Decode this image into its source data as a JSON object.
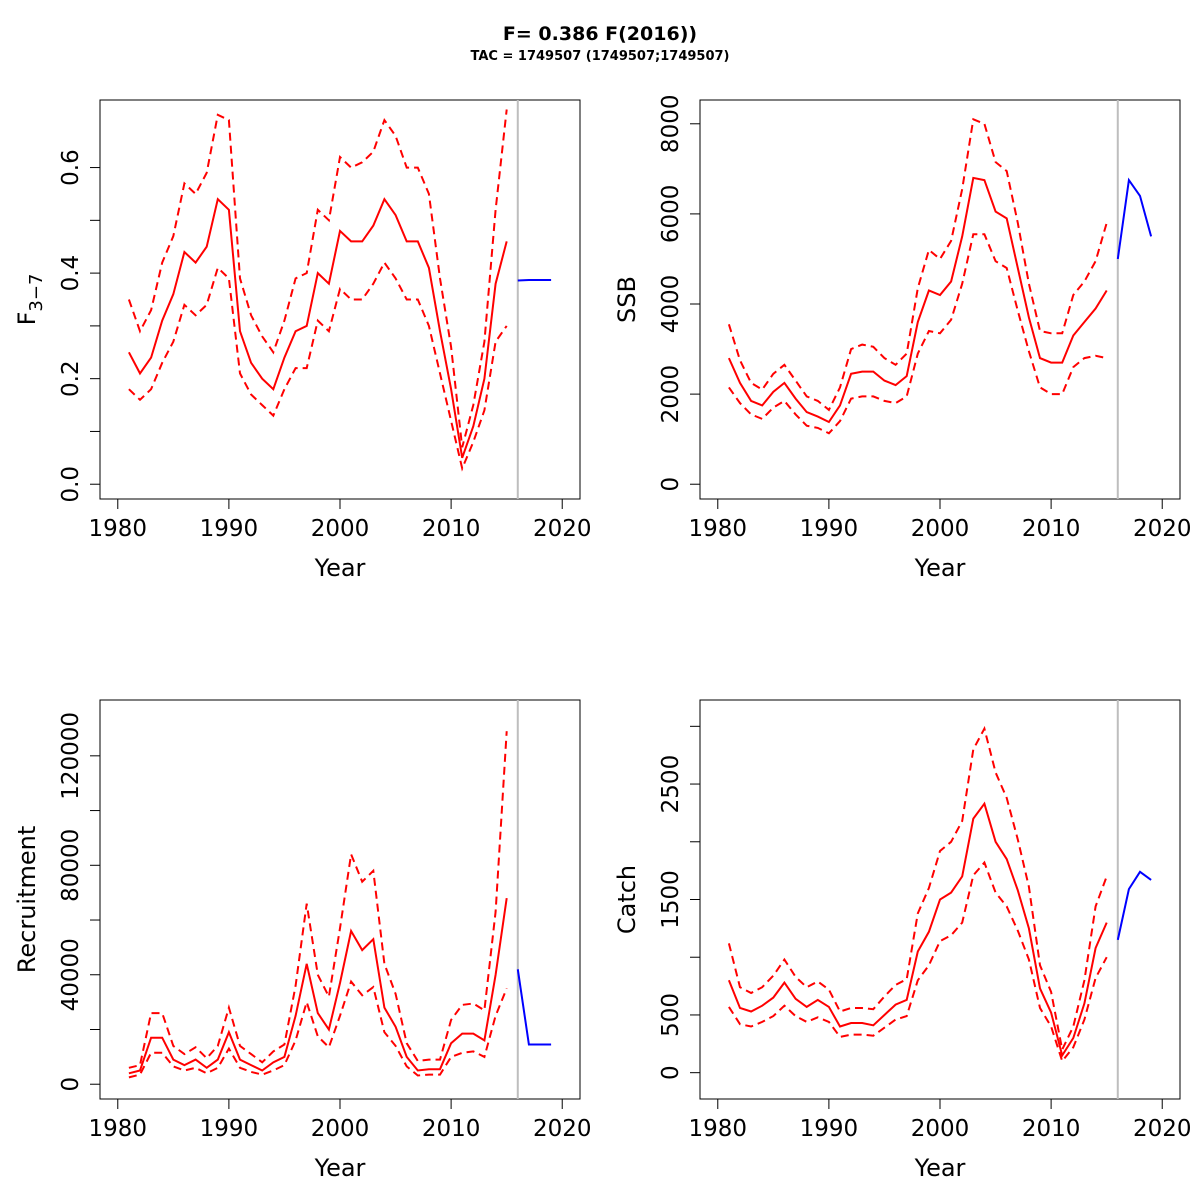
{
  "title": "F= 0.386 F(2016))",
  "subtitle": "TAC = 1749507 (1749507;1749507)",
  "colors": {
    "estimate": "#ff0000",
    "projection": "#0000ff",
    "divider": "#bebebe"
  },
  "chart_data": [
    {
      "type": "line",
      "xlabel": "Year",
      "ylabel_main": "F",
      "ylabel_sub": "3−7",
      "xlim": [
        1980,
        2020
      ],
      "ylim": [
        0,
        0.7
      ],
      "xticks": [
        1980,
        1990,
        2000,
        2010,
        2020
      ],
      "yticks": [
        0.0,
        0.2,
        0.4,
        0.6
      ],
      "ytick_labels": [
        "0.0",
        "0.2",
        "0.4",
        "0.6"
      ],
      "yminor": [
        0.1,
        0.3,
        0.5
      ],
      "divider_x": 2016,
      "years": [
        1981,
        1982,
        1983,
        1984,
        1985,
        1986,
        1987,
        1988,
        1989,
        1990,
        1991,
        1992,
        1993,
        1994,
        1995,
        1996,
        1997,
        1998,
        1999,
        2000,
        2001,
        2002,
        2003,
        2004,
        2005,
        2006,
        2007,
        2008,
        2009,
        2010,
        2011,
        2012,
        2013,
        2014,
        2015
      ],
      "estimate": [
        0.25,
        0.21,
        0.24,
        0.31,
        0.36,
        0.44,
        0.42,
        0.45,
        0.54,
        0.52,
        0.29,
        0.23,
        0.2,
        0.18,
        0.24,
        0.29,
        0.3,
        0.4,
        0.38,
        0.48,
        0.46,
        0.46,
        0.49,
        0.54,
        0.51,
        0.46,
        0.46,
        0.41,
        0.29,
        0.18,
        0.05,
        0.11,
        0.2,
        0.38,
        0.46
      ],
      "upper": [
        0.35,
        0.29,
        0.33,
        0.42,
        0.47,
        0.57,
        0.55,
        0.59,
        0.7,
        0.69,
        0.39,
        0.32,
        0.28,
        0.25,
        0.31,
        0.39,
        0.4,
        0.52,
        0.5,
        0.62,
        0.6,
        0.61,
        0.63,
        0.69,
        0.66,
        0.6,
        0.6,
        0.55,
        0.39,
        0.26,
        0.07,
        0.15,
        0.27,
        0.52,
        0.71
      ],
      "lower": [
        0.18,
        0.16,
        0.18,
        0.23,
        0.27,
        0.34,
        0.32,
        0.34,
        0.41,
        0.39,
        0.21,
        0.17,
        0.15,
        0.13,
        0.18,
        0.22,
        0.22,
        0.31,
        0.29,
        0.37,
        0.35,
        0.35,
        0.38,
        0.42,
        0.39,
        0.35,
        0.35,
        0.3,
        0.21,
        0.12,
        0.03,
        0.08,
        0.14,
        0.27,
        0.3
      ],
      "proj_years": [
        2016,
        2017,
        2018,
        2019
      ],
      "projection": [
        0.386,
        0.387,
        0.387,
        0.387
      ]
    },
    {
      "type": "line",
      "xlabel": "Year",
      "ylabel_main": "SSB",
      "ylabel_sub": "",
      "xlim": [
        1980,
        2020
      ],
      "ylim": [
        0,
        8200
      ],
      "xticks": [
        1980,
        1990,
        2000,
        2010,
        2020
      ],
      "yticks": [
        0,
        2000,
        4000,
        6000,
        8000
      ],
      "ytick_labels": [
        "0",
        "2000",
        "4000",
        "6000",
        "8000"
      ],
      "yminor": [],
      "divider_x": 2016,
      "years": [
        1981,
        1982,
        1983,
        1984,
        1985,
        1986,
        1987,
        1988,
        1989,
        1990,
        1991,
        1992,
        1993,
        1994,
        1995,
        1996,
        1997,
        1998,
        1999,
        2000,
        2001,
        2002,
        2003,
        2004,
        2005,
        2006,
        2007,
        2008,
        2009,
        2010,
        2011,
        2012,
        2013,
        2014,
        2015
      ],
      "estimate": [
        2800,
        2250,
        1850,
        1750,
        2050,
        2250,
        1900,
        1600,
        1500,
        1380,
        1750,
        2450,
        2500,
        2500,
        2300,
        2200,
        2400,
        3600,
        4300,
        4200,
        4500,
        5500,
        6800,
        6750,
        6050,
        5900,
        4800,
        3700,
        2800,
        2700,
        2700,
        3300,
        3600,
        3900,
        4300
      ],
      "upper": [
        3550,
        2750,
        2250,
        2100,
        2450,
        2650,
        2300,
        1950,
        1850,
        1650,
        2150,
        3000,
        3100,
        3050,
        2800,
        2650,
        2900,
        4350,
        5200,
        5000,
        5400,
        6550,
        8100,
        8000,
        7150,
        6950,
        5800,
        4450,
        3400,
        3350,
        3350,
        4200,
        4500,
        4950,
        5800
      ],
      "lower": [
        2150,
        1800,
        1550,
        1450,
        1700,
        1850,
        1550,
        1300,
        1250,
        1130,
        1400,
        1900,
        1950,
        1950,
        1850,
        1800,
        1950,
        2900,
        3400,
        3350,
        3650,
        4450,
        5550,
        5550,
        4950,
        4800,
        3850,
        2950,
        2150,
        2000,
        2000,
        2600,
        2800,
        2850,
        2800
      ],
      "proj_years": [
        2016,
        2017,
        2018,
        2019
      ],
      "projection": [
        5000,
        6750,
        6400,
        5500
      ]
    },
    {
      "type": "line",
      "xlabel": "Year",
      "ylabel_main": "Recruitment",
      "ylabel_sub": "",
      "xlim": [
        1980,
        2020
      ],
      "ylim": [
        0,
        135000
      ],
      "xticks": [
        1980,
        1990,
        2000,
        2010,
        2020
      ],
      "yticks": [
        0,
        40000,
        80000,
        120000
      ],
      "ytick_labels": [
        "0",
        "40000",
        "80000",
        "120000"
      ],
      "yminor": [
        20000,
        60000,
        100000
      ],
      "divider_x": 2016,
      "years": [
        1981,
        1982,
        1983,
        1984,
        1985,
        1986,
        1987,
        1988,
        1989,
        1990,
        1991,
        1992,
        1993,
        1994,
        1995,
        1996,
        1997,
        1998,
        1999,
        2000,
        2001,
        2002,
        2003,
        2004,
        2005,
        2006,
        2007,
        2008,
        2009,
        2010,
        2011,
        2012,
        2013,
        2014,
        2015
      ],
      "estimate": [
        4000,
        5000,
        17000,
        17000,
        9000,
        7000,
        9000,
        6000,
        9000,
        19000,
        9000,
        7000,
        5000,
        8000,
        10000,
        25000,
        44000,
        26000,
        20000,
        37000,
        56000,
        49000,
        53000,
        28000,
        21000,
        10000,
        5000,
        5500,
        5500,
        15000,
        18500,
        18500,
        16000,
        40000,
        68000
      ],
      "upper": [
        6000,
        7000,
        26000,
        26000,
        14000,
        11000,
        13500,
        9500,
        14000,
        28000,
        14000,
        11000,
        8000,
        12000,
        14500,
        36000,
        66000,
        40000,
        32000,
        57000,
        84000,
        74000,
        78000,
        44000,
        33000,
        15000,
        8500,
        9000,
        9000,
        23500,
        29000,
        29500,
        27000,
        63000,
        129000
      ],
      "lower": [
        2500,
        3500,
        11500,
        11500,
        6500,
        5000,
        6000,
        4000,
        6000,
        13000,
        6000,
        4500,
        3500,
        5000,
        7000,
        16000,
        30000,
        17500,
        13500,
        25000,
        37500,
        32500,
        35500,
        19000,
        14000,
        6500,
        3200,
        3500,
        3500,
        10000,
        11500,
        12000,
        10000,
        25000,
        35000
      ],
      "proj_years": [
        2016,
        2017,
        2018,
        2019
      ],
      "projection": [
        42000,
        14500,
        14500,
        14500
      ]
    },
    {
      "type": "line",
      "xlabel": "Year",
      "ylabel_main": "Catch",
      "ylabel_sub": "",
      "xlim": [
        1980,
        2020
      ],
      "ylim": [
        -100,
        3100
      ],
      "xticks": [
        1980,
        1990,
        2000,
        2010,
        2020
      ],
      "yticks": [
        0,
        500,
        1500,
        2500
      ],
      "ytick_labels": [
        "0",
        "500",
        "1500",
        "2500"
      ],
      "yminor": [
        1000,
        2000,
        3000
      ],
      "divider_x": 2016,
      "years": [
        1981,
        1982,
        1983,
        1984,
        1985,
        1986,
        1987,
        1988,
        1989,
        1990,
        1991,
        1992,
        1993,
        1994,
        1995,
        1996,
        1997,
        1998,
        1999,
        2000,
        2001,
        2002,
        2003,
        2004,
        2005,
        2006,
        2007,
        2008,
        2009,
        2010,
        2011,
        2012,
        2013,
        2014,
        2015
      ],
      "estimate": [
        800,
        560,
        530,
        580,
        650,
        780,
        640,
        570,
        630,
        570,
        400,
        430,
        430,
        410,
        500,
        590,
        630,
        1050,
        1220,
        1500,
        1560,
        1700,
        2200,
        2330,
        2000,
        1850,
        1580,
        1250,
        730,
        520,
        150,
        300,
        600,
        1080,
        1300
      ],
      "upper": [
        1120,
        740,
        690,
        740,
        840,
        980,
        830,
        740,
        790,
        720,
        530,
        560,
        560,
        550,
        660,
        760,
        810,
        1380,
        1600,
        1920,
        2000,
        2180,
        2800,
        2980,
        2600,
        2380,
        2020,
        1610,
        930,
        700,
        200,
        400,
        800,
        1440,
        1700
      ],
      "lower": [
        570,
        420,
        400,
        440,
        490,
        580,
        490,
        440,
        480,
        440,
        310,
        330,
        330,
        320,
        390,
        460,
        490,
        800,
        930,
        1140,
        1190,
        1300,
        1710,
        1820,
        1560,
        1440,
        1230,
        980,
        560,
        400,
        100,
        220,
        460,
        820,
        1000
      ],
      "proj_years": [
        2016,
        2017,
        2018,
        2019
      ],
      "projection": [
        1150,
        1590,
        1740,
        1670
      ]
    }
  ]
}
